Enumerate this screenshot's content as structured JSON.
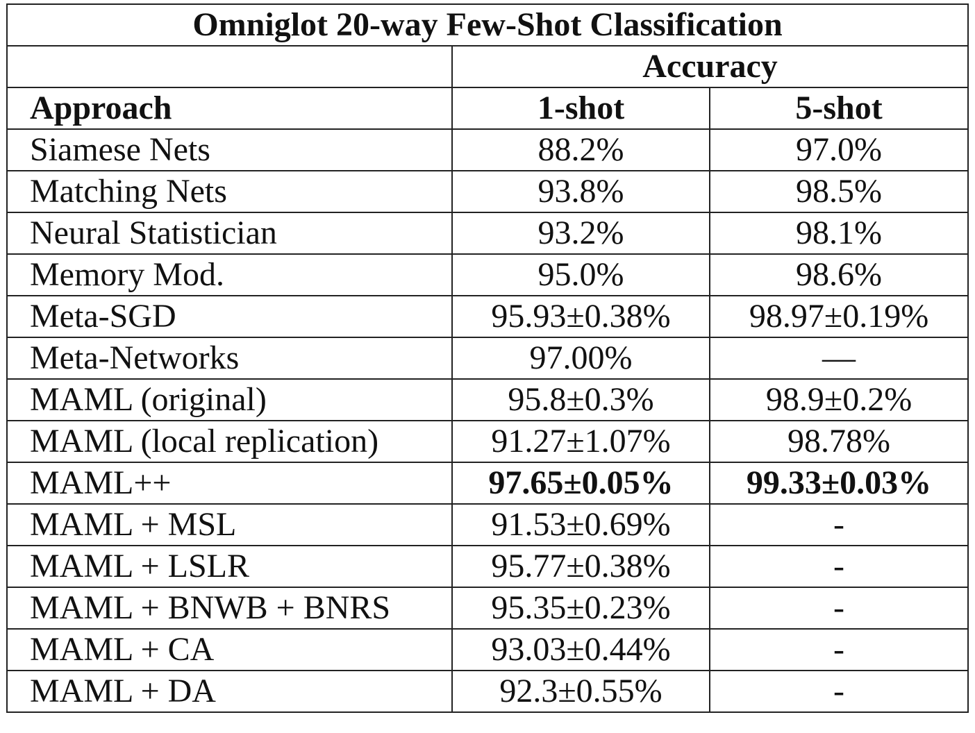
{
  "table": {
    "title": "Omniglot 20-way Few-Shot Classification",
    "group_header": "Accuracy",
    "columns": [
      "Approach",
      "1-shot",
      "5-shot"
    ],
    "rows": [
      {
        "approach": "Siamese Nets",
        "one_shot": "88.2%",
        "five_shot": "97.0%",
        "bold": false
      },
      {
        "approach": "Matching Nets",
        "one_shot": "93.8%",
        "five_shot": "98.5%",
        "bold": false
      },
      {
        "approach": "Neural Statistician",
        "one_shot": "93.2%",
        "five_shot": "98.1%",
        "bold": false
      },
      {
        "approach": "Memory Mod.",
        "one_shot": "95.0%",
        "five_shot": "98.6%",
        "bold": false
      },
      {
        "approach": "Meta-SGD",
        "one_shot": "95.93±0.38%",
        "five_shot": "98.97±0.19%",
        "bold": false
      },
      {
        "approach": "Meta-Networks",
        "one_shot": "97.00%",
        "five_shot": "—",
        "bold": false
      },
      {
        "approach": "MAML (original)",
        "one_shot": "95.8±0.3%",
        "five_shot": "98.9±0.2%",
        "bold": false
      },
      {
        "approach": "MAML (local replication)",
        "one_shot": "91.27±1.07%",
        "five_shot": "98.78%",
        "bold": false
      },
      {
        "approach": "MAML++",
        "one_shot": "97.65±0.05%",
        "five_shot": "99.33±0.03%",
        "bold": true
      },
      {
        "approach": "MAML + MSL",
        "one_shot": "91.53±0.69%",
        "five_shot": "-",
        "bold": false
      },
      {
        "approach": "MAML + LSLR",
        "one_shot": "95.77±0.38%",
        "five_shot": "-",
        "bold": false
      },
      {
        "approach": "MAML + BNWB + BNRS",
        "one_shot": "95.35±0.23%",
        "five_shot": "-",
        "bold": false
      },
      {
        "approach": "MAML + CA",
        "one_shot": "93.03±0.44%",
        "five_shot": "-",
        "bold": false
      },
      {
        "approach": "MAML + DA",
        "one_shot": "92.3±0.55%",
        "five_shot": "-",
        "bold": false
      }
    ]
  }
}
